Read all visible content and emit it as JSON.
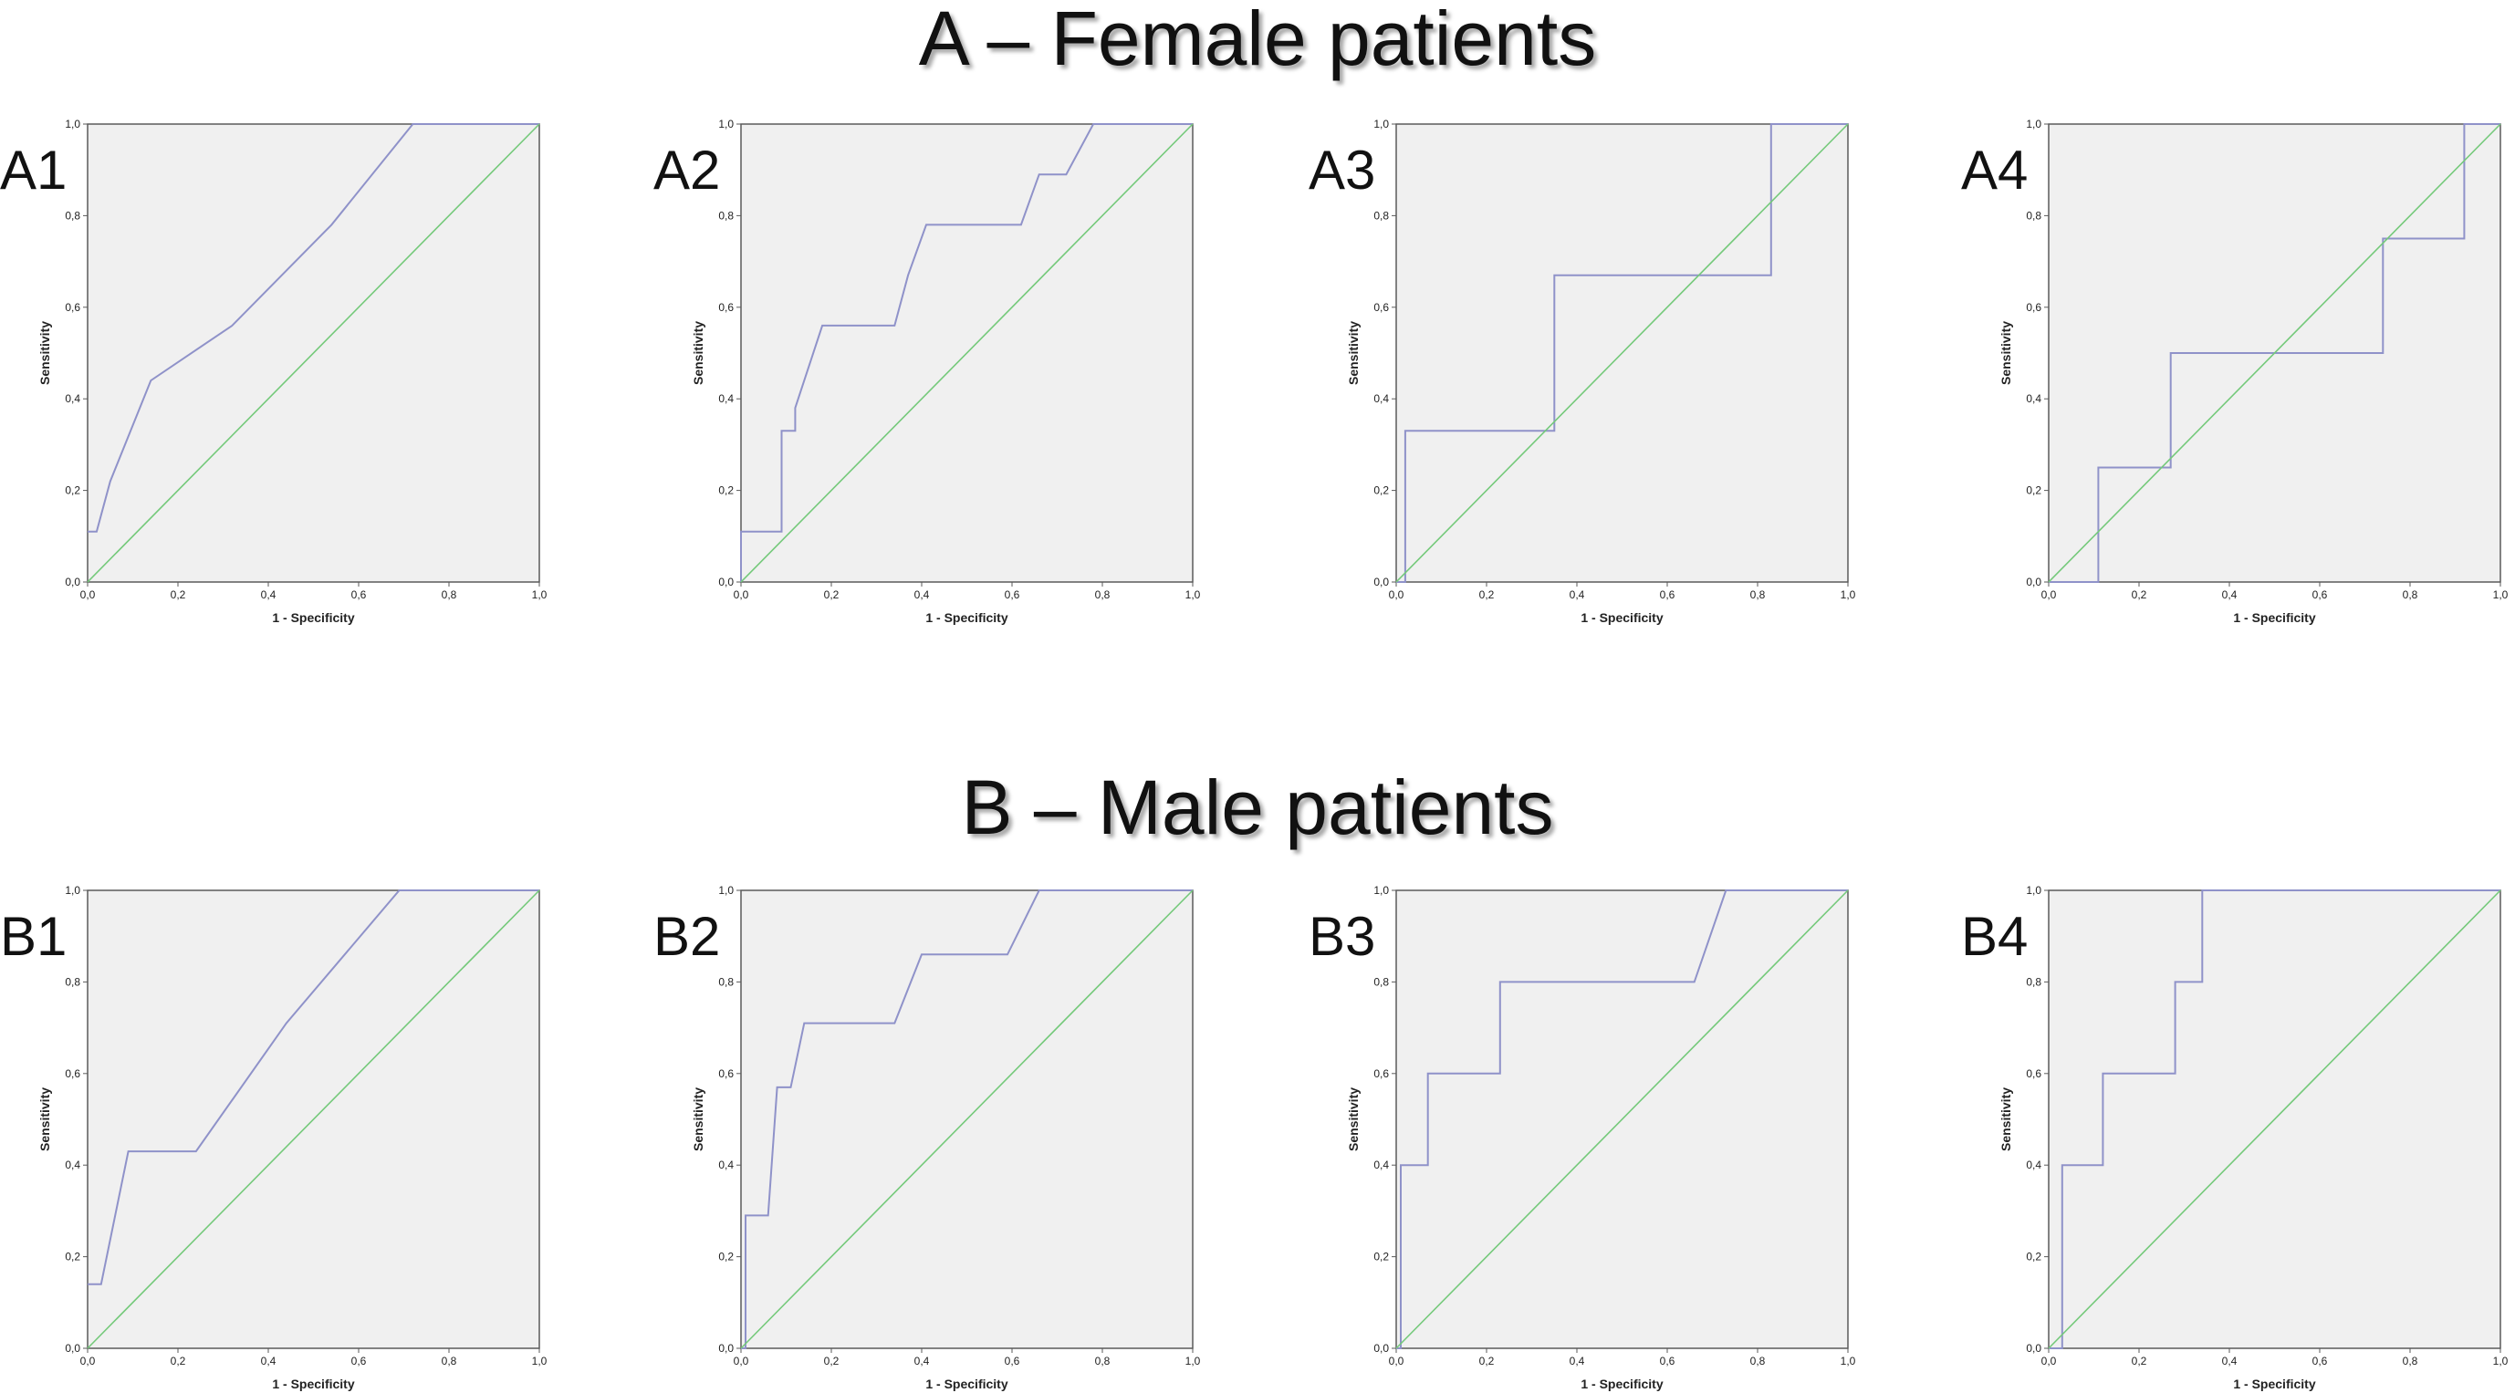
{
  "section_titles": {
    "female": "A – Female patients",
    "male": "B – Male patients"
  },
  "colors": {
    "plot_background": "#f0f0f0",
    "roc_curve": "#8f92c9",
    "reference_line": "#74c97a",
    "axis_frame": "#5a5a5a"
  },
  "chart_data": [
    {
      "type": "line",
      "panel": "A1",
      "group": "female",
      "xlabel": "1 - Specificity",
      "ylabel": "Sensitivity",
      "xlim": [
        0,
        1
      ],
      "ylim": [
        0,
        1
      ],
      "ticks": [
        "0,0",
        "0,2",
        "0,4",
        "0,6",
        "0,8",
        "1,0"
      ],
      "grid": false,
      "legend": "none",
      "series": [
        {
          "x": [
            0,
            0.02,
            0.05,
            0.14,
            0.32,
            0.54,
            0.72,
            1.0
          ],
          "y": [
            0.11,
            0.11,
            0.22,
            0.44,
            0.56,
            0.78,
            1.0,
            1.0
          ]
        },
        {
          "x": [
            0,
            1
          ],
          "y": [
            0,
            1
          ]
        }
      ]
    },
    {
      "type": "line",
      "panel": "A2",
      "group": "female",
      "xlabel": "1 - Specificity",
      "ylabel": "Sensitivity",
      "xlim": [
        0,
        1
      ],
      "ylim": [
        0,
        1
      ],
      "ticks": [
        "0,0",
        "0,2",
        "0,4",
        "0,6",
        "0,8",
        "1,0"
      ],
      "grid": false,
      "legend": "none",
      "series": [
        {
          "x": [
            0,
            0,
            0.09,
            0.09,
            0.12,
            0.12,
            0.14,
            0.18,
            0.34,
            0.37,
            0.41,
            0.62,
            0.66,
            0.72,
            0.78,
            1.0
          ],
          "y": [
            0,
            0.11,
            0.11,
            0.33,
            0.33,
            0.38,
            0.44,
            0.56,
            0.56,
            0.67,
            0.78,
            0.78,
            0.89,
            0.89,
            1.0,
            1.0
          ]
        },
        {
          "x": [
            0,
            1
          ],
          "y": [
            0,
            1
          ]
        }
      ]
    },
    {
      "type": "line",
      "panel": "A3",
      "group": "female",
      "xlabel": "1 - Specificity",
      "ylabel": "Sensitivity",
      "xlim": [
        0,
        1
      ],
      "ylim": [
        0,
        1
      ],
      "ticks": [
        "0,0",
        "0,2",
        "0,4",
        "0,6",
        "0,8",
        "1,0"
      ],
      "grid": false,
      "legend": "none",
      "series": [
        {
          "x": [
            0,
            0.02,
            0.02,
            0.35,
            0.35,
            0.83,
            0.83,
            1.0
          ],
          "y": [
            0,
            0,
            0.33,
            0.33,
            0.67,
            0.67,
            1.0,
            1.0
          ]
        },
        {
          "x": [
            0,
            1
          ],
          "y": [
            0,
            1
          ]
        }
      ]
    },
    {
      "type": "line",
      "panel": "A4",
      "group": "female",
      "xlabel": "1 - Specificity",
      "ylabel": "Sensitivity",
      "xlim": [
        0,
        1
      ],
      "ylim": [
        0,
        1
      ],
      "ticks": [
        "0,0",
        "0,2",
        "0,4",
        "0,6",
        "0,8",
        "1,0"
      ],
      "grid": false,
      "legend": "none",
      "series": [
        {
          "x": [
            0,
            0.11,
            0.11,
            0.27,
            0.27,
            0.74,
            0.74,
            0.92,
            0.92,
            1.0
          ],
          "y": [
            0,
            0,
            0.25,
            0.25,
            0.5,
            0.5,
            0.75,
            0.75,
            1.0,
            1.0
          ]
        },
        {
          "x": [
            0,
            1
          ],
          "y": [
            0,
            1
          ]
        }
      ]
    },
    {
      "type": "line",
      "panel": "B1",
      "group": "male",
      "xlabel": "1 - Specificity",
      "ylabel": "Sensitivity",
      "xlim": [
        0,
        1
      ],
      "ylim": [
        0,
        1
      ],
      "ticks": [
        "0,0",
        "0,2",
        "0,4",
        "0,6",
        "0,8",
        "1,0"
      ],
      "grid": false,
      "legend": "none",
      "series": [
        {
          "x": [
            0,
            0.03,
            0.09,
            0.24,
            0.44,
            0.69,
            1.0
          ],
          "y": [
            0.14,
            0.14,
            0.43,
            0.43,
            0.71,
            1.0,
            1.0
          ]
        },
        {
          "x": [
            0,
            1
          ],
          "y": [
            0,
            1
          ]
        }
      ]
    },
    {
      "type": "line",
      "panel": "B2",
      "group": "male",
      "xlabel": "1 - Specificity",
      "ylabel": "Sensitivity",
      "xlim": [
        0,
        1
      ],
      "ylim": [
        0,
        1
      ],
      "ticks": [
        "0,0",
        "0,2",
        "0,4",
        "0,6",
        "0,8",
        "1,0"
      ],
      "grid": false,
      "legend": "none",
      "series": [
        {
          "x": [
            0,
            0.01,
            0.01,
            0.06,
            0.08,
            0.11,
            0.14,
            0.34,
            0.4,
            0.59,
            0.66,
            1.0
          ],
          "y": [
            0,
            0,
            0.29,
            0.29,
            0.57,
            0.57,
            0.71,
            0.71,
            0.86,
            0.86,
            1.0,
            1.0
          ]
        },
        {
          "x": [
            0,
            1
          ],
          "y": [
            0,
            1
          ]
        }
      ]
    },
    {
      "type": "line",
      "panel": "B3",
      "group": "male",
      "xlabel": "1 - Specificity",
      "ylabel": "Sensitivity",
      "xlim": [
        0,
        1
      ],
      "ylim": [
        0,
        1
      ],
      "ticks": [
        "0,0",
        "0,2",
        "0,4",
        "0,6",
        "0,8",
        "1,0"
      ],
      "grid": false,
      "legend": "none",
      "series": [
        {
          "x": [
            0,
            0.01,
            0.01,
            0.07,
            0.07,
            0.23,
            0.23,
            0.66,
            0.73,
            1.0
          ],
          "y": [
            0,
            0,
            0.4,
            0.4,
            0.6,
            0.6,
            0.8,
            0.8,
            1.0,
            1.0
          ]
        },
        {
          "x": [
            0,
            1
          ],
          "y": [
            0,
            1
          ]
        }
      ]
    },
    {
      "type": "line",
      "panel": "B4",
      "group": "male",
      "xlabel": "1 - Specificity",
      "ylabel": "Sensitivity",
      "xlim": [
        0,
        1
      ],
      "ylim": [
        0,
        1
      ],
      "ticks": [
        "0,0",
        "0,2",
        "0,4",
        "0,6",
        "0,8",
        "1,0"
      ],
      "grid": false,
      "legend": "none",
      "series": [
        {
          "x": [
            0,
            0.03,
            0.03,
            0.12,
            0.12,
            0.28,
            0.28,
            0.34,
            0.34,
            1.0
          ],
          "y": [
            0,
            0,
            0.4,
            0.4,
            0.6,
            0.6,
            0.8,
            0.8,
            1.0,
            1.0
          ]
        },
        {
          "x": [
            0,
            1
          ],
          "y": [
            0,
            1
          ]
        }
      ]
    }
  ]
}
